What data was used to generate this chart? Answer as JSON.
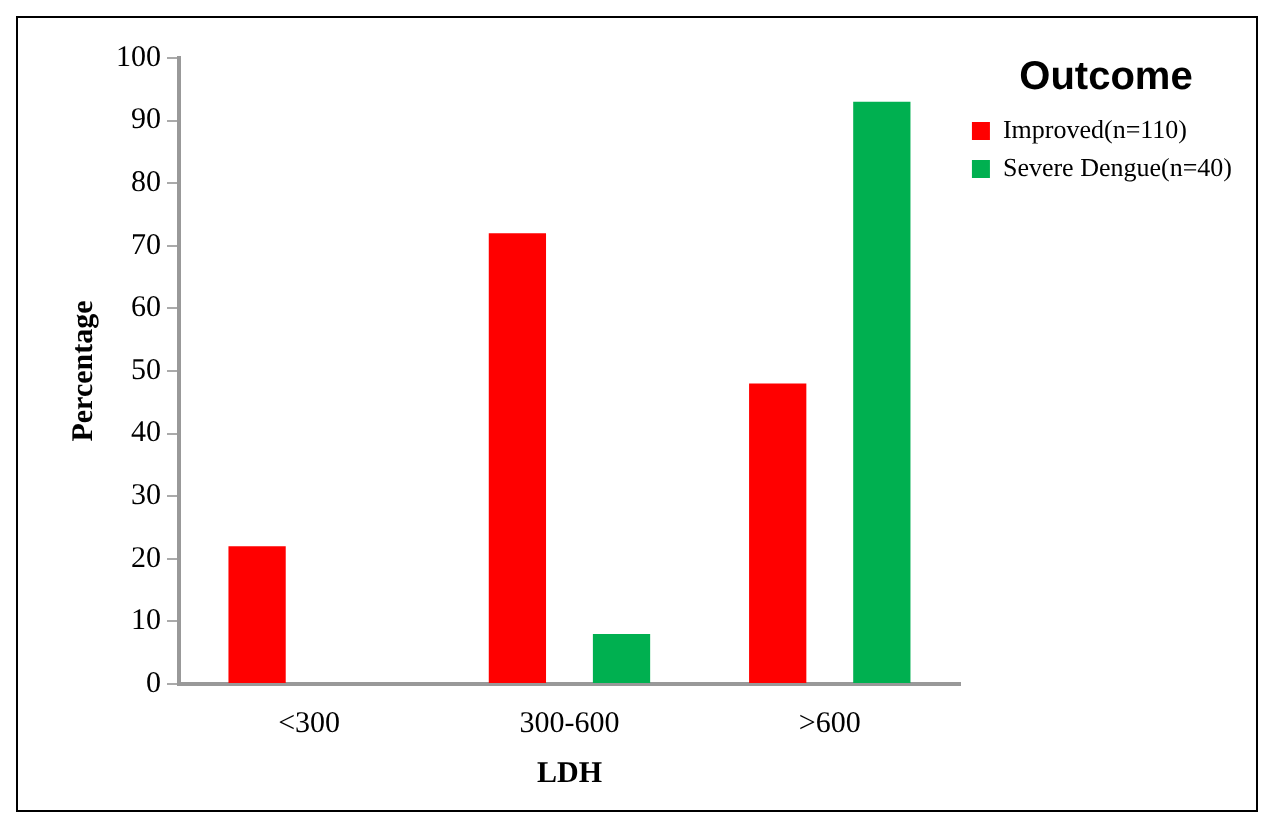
{
  "chart_data": {
    "type": "bar",
    "xlabel": "LDH",
    "ylabel": "Percentage",
    "legend_title": "Outcome",
    "categories": [
      "<300",
      "300-600",
      ">600"
    ],
    "series": [
      {
        "name": "Improved(n=110)",
        "color": "#ff0000",
        "values": [
          22,
          72,
          48
        ]
      },
      {
        "name": "Severe Dengue(n=40)",
        "color": "#00b050",
        "values": [
          0,
          8,
          93
        ]
      }
    ],
    "ylim": [
      0,
      100
    ],
    "yticks": [
      0,
      10,
      20,
      30,
      40,
      50,
      60,
      70,
      80,
      90,
      100
    ],
    "grid": false,
    "legend": "top right"
  }
}
